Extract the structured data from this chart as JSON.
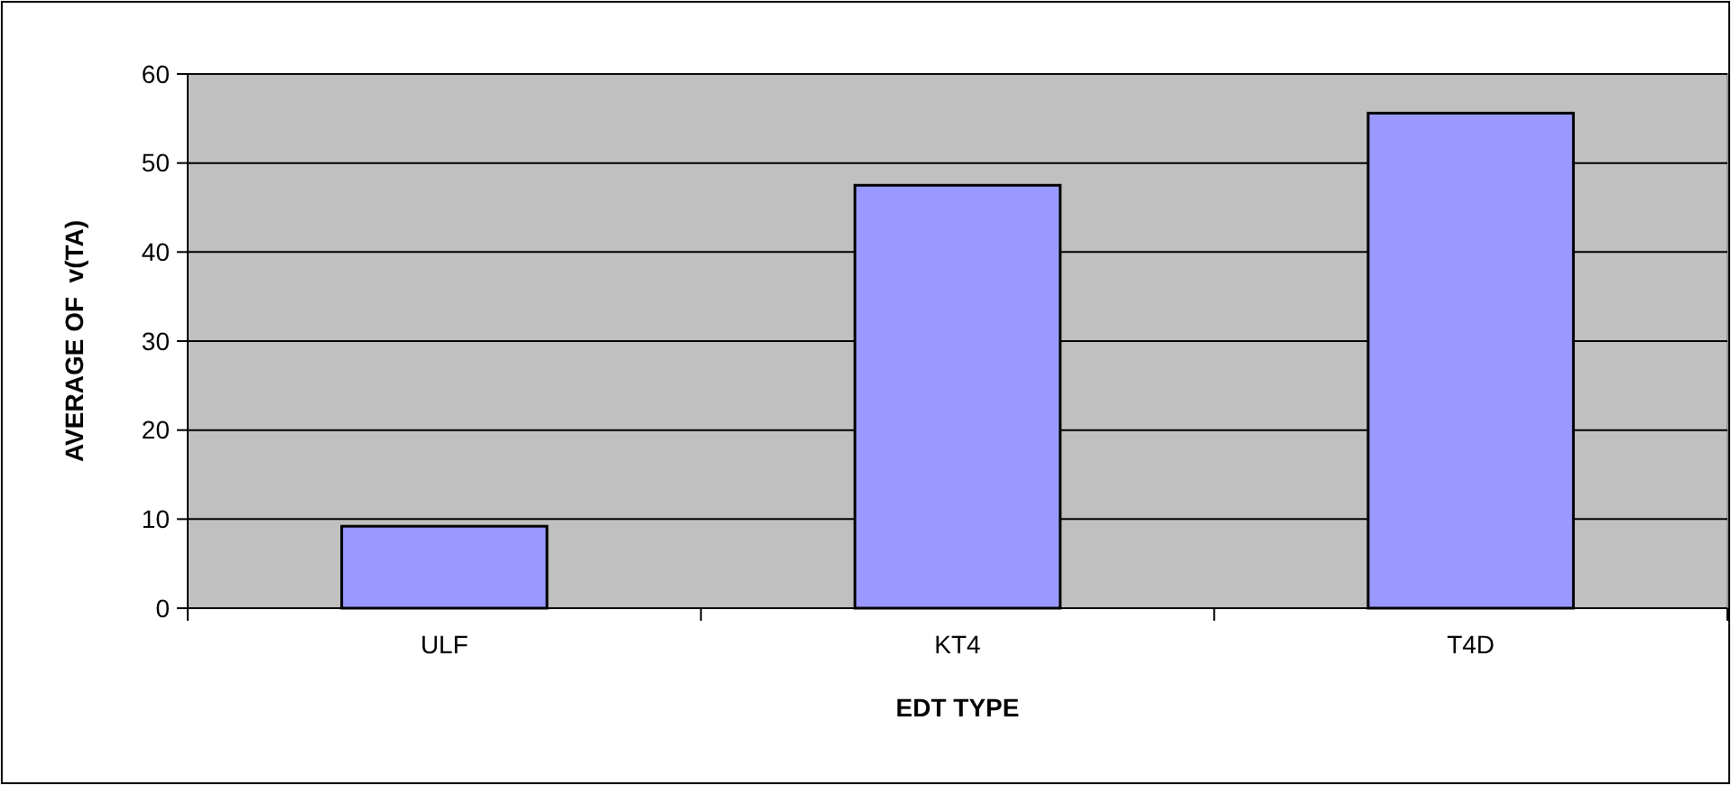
{
  "chart_data": {
    "type": "bar",
    "xlabel": "EDT TYPE",
    "ylabel": "AVERAGE OF  v(TA)",
    "categories": [
      "ULF",
      "KT4",
      "T4D"
    ],
    "values": [
      9.2,
      47.5,
      55.6
    ],
    "color": "#9999ff",
    "ylim": [
      0,
      60
    ],
    "yticks": [
      0,
      10,
      20,
      30,
      40,
      50,
      60
    ],
    "grid": "y"
  }
}
